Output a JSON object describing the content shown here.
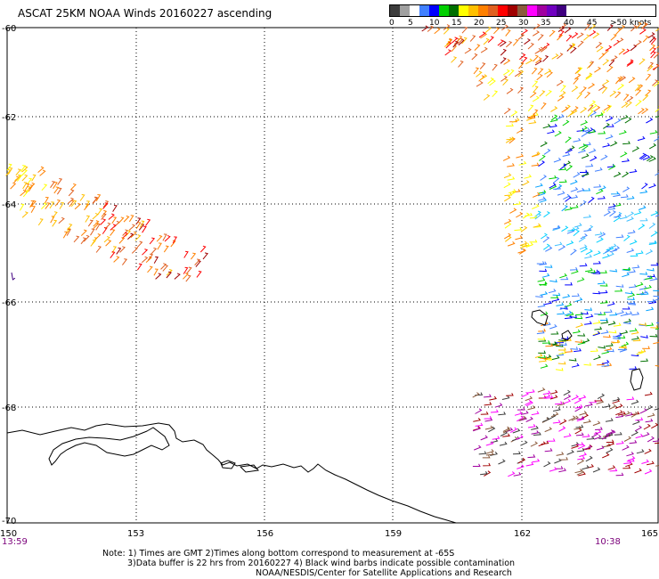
{
  "title": "ASCAT 25KM NOAA Winds 20160227 ascending",
  "legend": {
    "labels": [
      "0",
      "5",
      "10",
      "15",
      "20",
      "25",
      "30",
      "35",
      "40",
      "45",
      ">50 knots"
    ],
    "colors": [
      "#3c3c3c",
      "#a0a0a0",
      "#ffffff",
      "#4080ff",
      "#0000ff",
      "#00d000",
      "#007000",
      "#ffff00",
      "#ffc000",
      "#ff8000",
      "#e06020",
      "#ff0000",
      "#a00000",
      "#8b5a3c",
      "#ff00ff",
      "#a000a0",
      "#7000c0",
      "#400080"
    ]
  },
  "axes": {
    "lat_labels": [
      "-60",
      "-62",
      "-64",
      "-66",
      "-68",
      "-70"
    ],
    "lon_labels": [
      "150",
      "153",
      "156",
      "159",
      "162",
      "165"
    ]
  },
  "time_labels": {
    "left": "13:59",
    "right": "10:38"
  },
  "notes": [
    "Note: 1) Times are GMT 2)Times along bottom correspond to measurement at -65S",
    "3)Data buffer is 22 hrs from 20160227 4) Black wind barbs indicate possible contamination",
    "NOAA/NESDIS/Center for Satellite Applications and Research"
  ]
}
